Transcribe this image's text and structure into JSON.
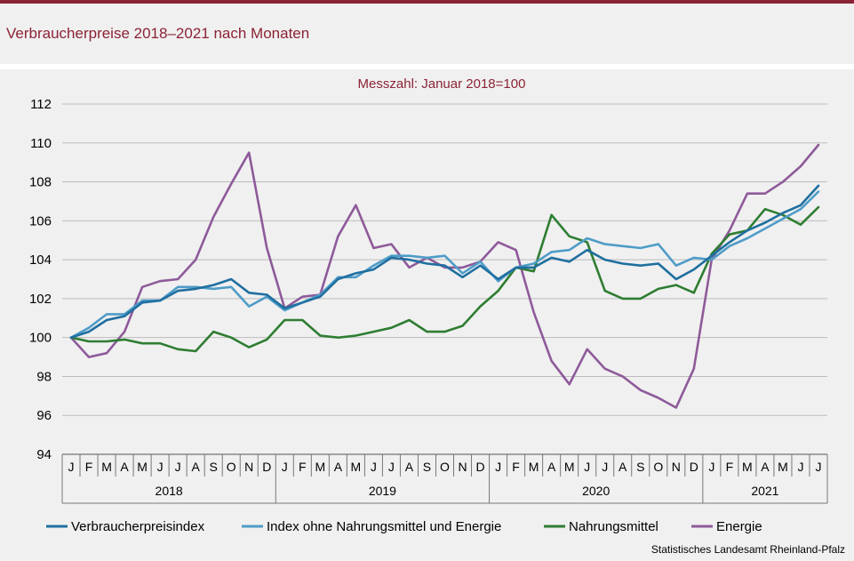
{
  "title": "Verbraucherpreise 2018–2021 nach Monaten",
  "source": "Statistisches Landesamt Rheinland-Pfalz",
  "colors": {
    "accent": "#8b2335",
    "panel": "#f0f0f0"
  },
  "chart_data": {
    "type": "line",
    "subtitle": "Messzahl:  Januar  2018=100",
    "ylim": [
      94,
      112
    ],
    "yticks": [
      94,
      96,
      98,
      100,
      102,
      104,
      106,
      108,
      110,
      112
    ],
    "grid": true,
    "legend_position": "bottom",
    "x_months": [
      "J",
      "F",
      "M",
      "A",
      "M",
      "J",
      "J",
      "A",
      "S",
      "O",
      "N",
      "D",
      "J",
      "F",
      "M",
      "A",
      "M",
      "J",
      "J",
      "A",
      "S",
      "O",
      "N",
      "D",
      "J",
      "F",
      "M",
      "A",
      "M",
      "J",
      "J",
      "A",
      "S",
      "O",
      "N",
      "D",
      "J",
      "F",
      "M",
      "A",
      "M",
      "J",
      "J"
    ],
    "year_groups": [
      {
        "label": "2018",
        "months": 12
      },
      {
        "label": "2019",
        "months": 12
      },
      {
        "label": "2020",
        "months": 12
      },
      {
        "label": "2021",
        "months": 7
      }
    ],
    "series": [
      {
        "name": "Verbraucherpreisindex",
        "color": "#1f6fa0",
        "values": [
          100.0,
          100.3,
          100.9,
          101.1,
          101.8,
          101.9,
          102.4,
          102.5,
          102.7,
          103.0,
          102.3,
          102.2,
          101.5,
          101.8,
          102.1,
          103.0,
          103.3,
          103.5,
          104.1,
          104.0,
          103.8,
          103.7,
          103.1,
          103.7,
          103.0,
          103.6,
          103.6,
          104.1,
          103.9,
          104.5,
          104.0,
          103.8,
          103.7,
          103.8,
          103.0,
          103.5,
          104.2,
          104.9,
          105.5,
          105.9,
          106.4,
          106.8,
          107.8
        ]
      },
      {
        "name": "Index ohne Nahrungsmittel und Energie",
        "color": "#4f9cc8",
        "values": [
          100.0,
          100.5,
          101.2,
          101.2,
          101.9,
          101.9,
          102.6,
          102.6,
          102.5,
          102.6,
          101.6,
          102.1,
          101.4,
          101.8,
          102.2,
          103.1,
          103.1,
          103.7,
          104.2,
          104.2,
          104.1,
          104.2,
          103.3,
          103.9,
          102.9,
          103.6,
          103.8,
          104.4,
          104.5,
          105.1,
          104.8,
          104.7,
          104.6,
          104.8,
          103.7,
          104.1,
          104.0,
          104.7,
          105.1,
          105.6,
          106.1,
          106.6,
          107.5
        ]
      },
      {
        "name": "Nahrungsmittel",
        "color": "#2e7d32",
        "values": [
          100.0,
          99.8,
          99.8,
          99.9,
          99.7,
          99.7,
          99.4,
          99.3,
          100.3,
          100.0,
          99.5,
          99.9,
          100.9,
          100.9,
          100.1,
          100.0,
          100.1,
          100.3,
          100.5,
          100.9,
          100.3,
          100.3,
          100.6,
          101.6,
          102.4,
          103.6,
          103.4,
          106.3,
          105.2,
          104.9,
          102.4,
          102.0,
          102.0,
          102.5,
          102.7,
          102.3,
          104.3,
          105.3,
          105.5,
          106.6,
          106.3,
          105.8,
          106.7
        ]
      },
      {
        "name": "Energie",
        "color": "#8e5a9a",
        "values": [
          100.0,
          99.0,
          99.2,
          100.3,
          102.6,
          102.9,
          103.0,
          104.0,
          106.2,
          107.9,
          109.5,
          104.6,
          101.5,
          102.1,
          102.2,
          105.2,
          106.8,
          104.6,
          104.8,
          103.6,
          104.1,
          103.6,
          103.6,
          103.9,
          104.9,
          104.5,
          101.3,
          98.8,
          97.6,
          99.4,
          98.4,
          98.0,
          97.3,
          96.9,
          96.4,
          98.4,
          104.0,
          105.5,
          107.4,
          107.4,
          108.0,
          108.8,
          109.9
        ]
      }
    ]
  }
}
